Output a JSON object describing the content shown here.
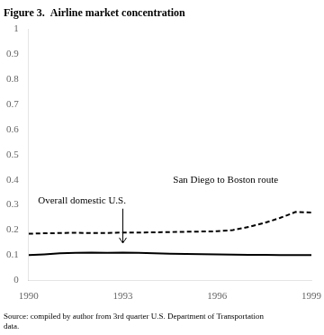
{
  "chart_data": {
    "type": "line",
    "title": "Figure 3.  Airline market concentration",
    "source": "Source: compiled by author from 3rd quarter U.S. Department of Transportation\ndata.",
    "x": [
      1990,
      1990.5,
      1991,
      1991.5,
      1992,
      1992.5,
      1993,
      1993.5,
      1994,
      1994.5,
      1995,
      1995.5,
      1996,
      1996.5,
      1997,
      1997.5,
      1998,
      1998.5,
      1999
    ],
    "series": [
      {
        "name": "Overall domestic U.S.",
        "color": "#000000",
        "line_style": "solid",
        "values": [
          0.1,
          0.103,
          0.107,
          0.109,
          0.11,
          0.109,
          0.11,
          0.109,
          0.107,
          0.106,
          0.105,
          0.104,
          0.103,
          0.102,
          0.101,
          0.101,
          0.1,
          0.1,
          0.1
        ]
      },
      {
        "name": "San Diego to Boston route",
        "color": "#000000",
        "line_style": "dashed",
        "values": [
          0.185,
          0.187,
          0.188,
          0.189,
          0.188,
          0.188,
          0.19,
          0.19,
          0.191,
          0.192,
          0.193,
          0.194,
          0.195,
          0.2,
          0.212,
          0.228,
          0.248,
          0.272,
          0.27
        ]
      }
    ],
    "annotations": [
      {
        "text": "Overall domestic U.S.",
        "x": 1990.3,
        "y": 0.298
      },
      {
        "text": "San Diego to Boston route",
        "x": 1994.6,
        "y": 0.378
      }
    ],
    "arrows": [
      {
        "x": 1993,
        "y_start": 0.285,
        "y_end": 0.148
      }
    ],
    "xlim": [
      1990,
      1999
    ],
    "xticks": [
      1990,
      1993,
      1996,
      1999
    ],
    "ylim": [
      0,
      1
    ],
    "yticks": [
      0,
      0.1,
      0.2,
      0.3,
      0.4,
      0.5,
      0.6,
      0.7,
      0.8,
      0.9,
      1
    ],
    "grid": false
  }
}
